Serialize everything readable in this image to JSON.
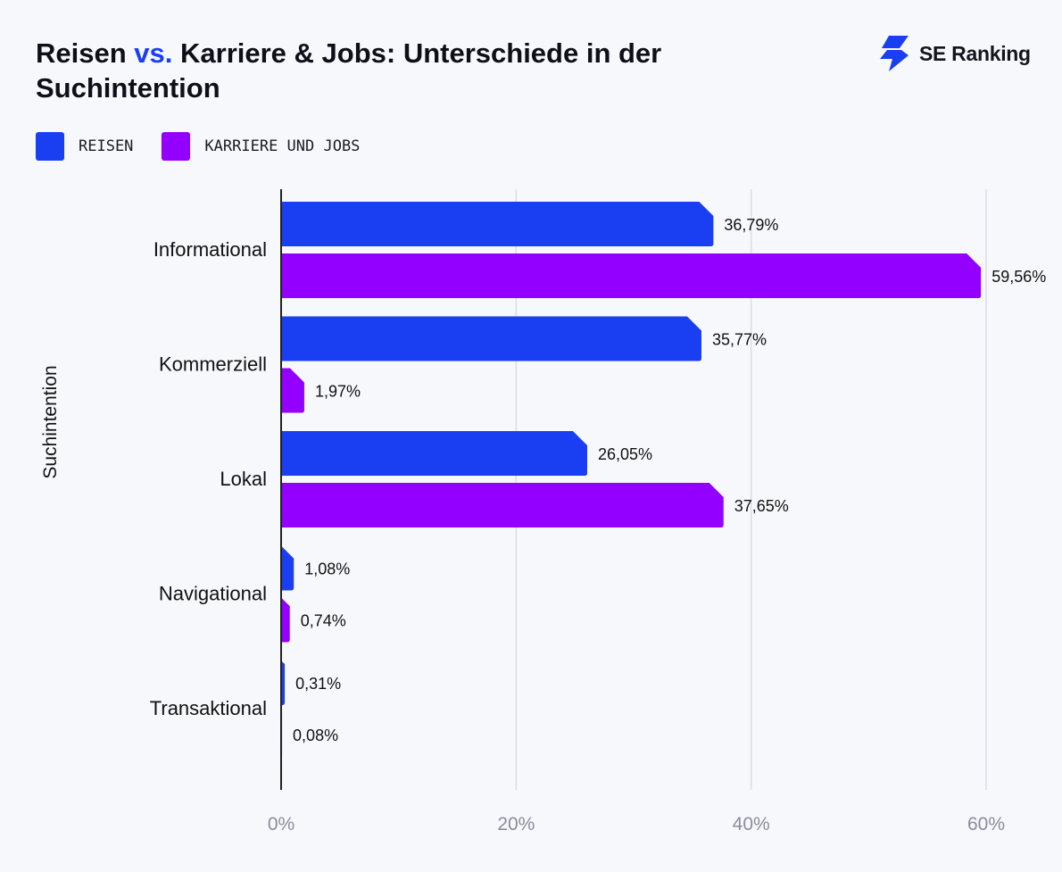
{
  "title": {
    "part1": "Reisen ",
    "vs": "vs.",
    "part2": " Karriere & Jobs: Unterschiede in der Suchintention"
  },
  "logo": {
    "text": "SE Ranking",
    "icon": "se-ranking-bolt-icon"
  },
  "colors": {
    "reisen": "#1a3ff2",
    "karriere": "#9400ff",
    "vs": "#1a3ff2",
    "grid": "#dcdee6",
    "axis": "#222222"
  },
  "chart_data": {
    "type": "bar",
    "orientation": "horizontal",
    "title": "Reisen vs. Karriere & Jobs: Unterschiede in der Suchintention",
    "ylabel": "Suchintention",
    "xlabel": "",
    "xlim": [
      0,
      60
    ],
    "xticks": [
      0,
      20,
      40,
      60
    ],
    "xtick_labels": [
      "0%",
      "20%",
      "40%",
      "60%"
    ],
    "grid": true,
    "legend_position": "top-left",
    "categories": [
      "Informational",
      "Kommerziell",
      "Lokal",
      "Navigational",
      "Transaktional"
    ],
    "series": [
      {
        "name": "REISEN",
        "values": [
          36.79,
          35.77,
          26.05,
          1.08,
          0.31
        ],
        "labels": [
          "36,79%",
          "35,77%",
          "26,05%",
          "1,08%",
          "0,31%"
        ]
      },
      {
        "name": "KARRIERE UND JOBS",
        "values": [
          59.56,
          1.97,
          37.65,
          0.74,
          0.08
        ],
        "labels": [
          "59,56%",
          "1,97%",
          "37,65%",
          "0,74%",
          "0,08%"
        ]
      }
    ]
  }
}
